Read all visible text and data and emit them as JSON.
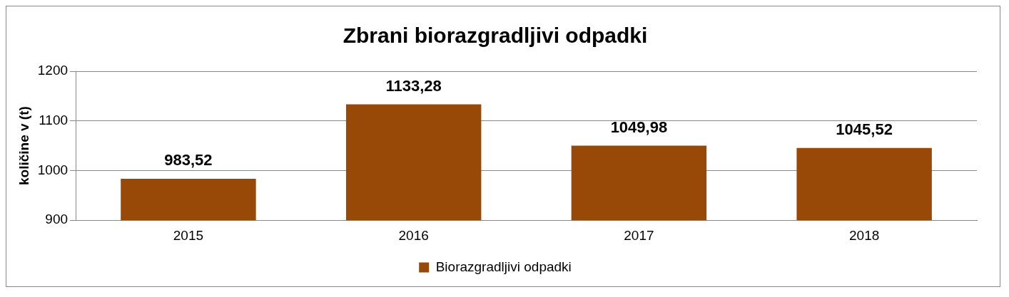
{
  "chart_data": {
    "type": "bar",
    "title": "Zbrani biorazgradljivi odpadki",
    "ylabel": "količine v (t)",
    "categories": [
      "2015",
      "2016",
      "2017",
      "2018"
    ],
    "series": [
      {
        "name": "Biorazgradljivi odpadki",
        "color": "#984807",
        "values": [
          983.52,
          1133.28,
          1049.98,
          1045.52
        ],
        "value_labels": [
          "983,52",
          "1133,28",
          "1049,98",
          "1045,52"
        ]
      }
    ],
    "ylim": [
      900,
      1200
    ],
    "yticks": [
      900,
      1000,
      1100,
      1200
    ],
    "grid": "y",
    "legend": "bottom"
  }
}
